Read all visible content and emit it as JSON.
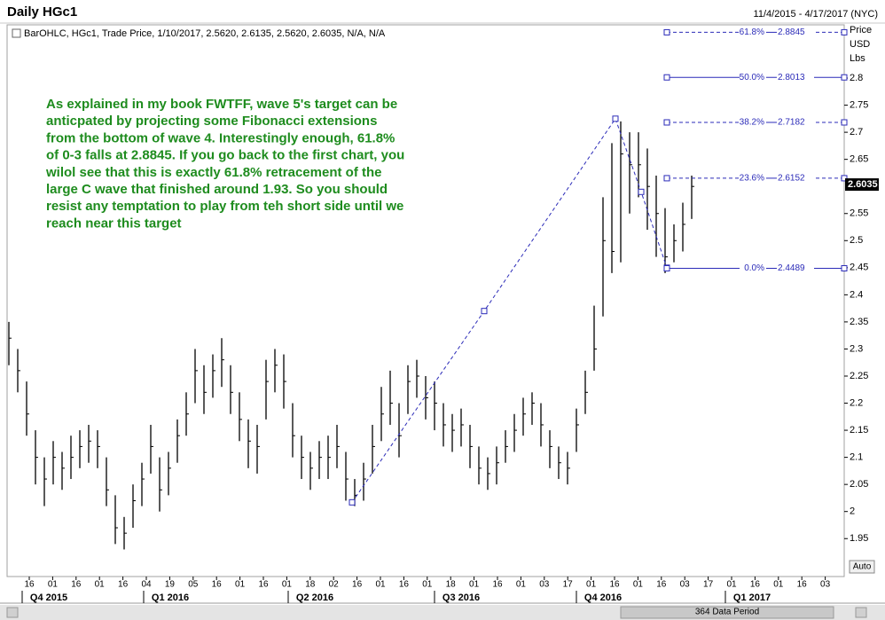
{
  "chart_data": {
    "type": "ohlc",
    "title": "Daily HGc1",
    "date_range": "11/4/2015 - 4/17/2017 (NYC)",
    "legend_text": "BarOHLC, HGc1, Trade Price, 1/10/2017, 2.5620, 2.6135, 2.5620, 2.6035, N/A, N/A",
    "axis_header": [
      "Price",
      "USD",
      "Lbs"
    ],
    "annotation": [
      "As explained in my book FWTFF, wave 5's target can be",
      "anticpated by projecting some Fibonacci extensions",
      "from the bottom of wave 4. Interestingly enough, 61.8%",
      "of 0-3 falls at 2.8845. If you go back to the first chart, you",
      "wilol see that this is exactly 61.8% retracement of the",
      "large C wave that finished around 1.93. So you should",
      "resist any temptation to play from teh short side until we",
      "reach near this target"
    ],
    "bar_color": "#000000",
    "annotation_color": "#1e8c1e",
    "high": [
      2.35,
      2.3,
      2.24,
      2.15,
      2.1,
      2.13,
      2.11,
      2.14,
      2.15,
      2.16,
      2.15,
      2.1,
      2.03,
      1.99,
      2.05,
      2.09,
      2.16,
      2.1,
      2.11,
      2.17,
      2.22,
      2.3,
      2.27,
      2.29,
      2.32,
      2.27,
      2.22,
      2.17,
      2.16,
      2.28,
      2.3,
      2.29,
      2.2,
      2.14,
      2.11,
      2.13,
      2.14,
      2.16,
      2.11,
      2.06,
      2.09,
      2.16,
      2.23,
      2.26,
      2.2,
      2.27,
      2.28,
      2.25,
      2.24,
      2.2,
      2.18,
      2.19,
      2.16,
      2.12,
      2.1,
      2.12,
      2.15,
      2.18,
      2.21,
      2.22,
      2.2,
      2.15,
      2.12,
      2.11,
      2.19,
      2.26,
      2.38,
      2.58,
      2.68,
      2.72,
      2.7,
      2.7,
      2.67,
      2.62,
      2.56,
      2.53,
      2.57,
      2.62
    ],
    "low": [
      2.27,
      2.22,
      2.14,
      2.05,
      2.01,
      2.05,
      2.04,
      2.06,
      2.08,
      2.09,
      2.08,
      2.01,
      1.94,
      1.93,
      1.97,
      2.01,
      2.07,
      2.0,
      2.03,
      2.09,
      2.14,
      2.2,
      2.18,
      2.21,
      2.23,
      2.18,
      2.13,
      2.08,
      2.07,
      2.17,
      2.22,
      2.19,
      2.1,
      2.06,
      2.04,
      2.06,
      2.06,
      2.08,
      2.02,
      2.01,
      2.02,
      2.07,
      2.13,
      2.16,
      2.1,
      2.18,
      2.21,
      2.17,
      2.15,
      2.12,
      2.11,
      2.12,
      2.08,
      2.05,
      2.04,
      2.05,
      2.09,
      2.11,
      2.14,
      2.16,
      2.12,
      2.08,
      2.06,
      2.05,
      2.11,
      2.18,
      2.26,
      2.36,
      2.44,
      2.46,
      2.55,
      2.58,
      2.52,
      2.47,
      2.44,
      2.46,
      2.48,
      2.54
    ],
    "close": [
      2.32,
      2.26,
      2.18,
      2.1,
      2.06,
      2.1,
      2.08,
      2.1,
      2.12,
      2.13,
      2.12,
      2.04,
      1.97,
      1.96,
      2.02,
      2.06,
      2.12,
      2.04,
      2.08,
      2.14,
      2.18,
      2.26,
      2.22,
      2.26,
      2.28,
      2.22,
      2.17,
      2.13,
      2.12,
      2.24,
      2.27,
      2.24,
      2.14,
      2.1,
      2.08,
      2.1,
      2.1,
      2.12,
      2.06,
      2.03,
      2.06,
      2.12,
      2.18,
      2.2,
      2.14,
      2.24,
      2.25,
      2.21,
      2.2,
      2.16,
      2.15,
      2.16,
      2.12,
      2.08,
      2.07,
      2.09,
      2.12,
      2.15,
      2.18,
      2.2,
      2.16,
      2.12,
      2.09,
      2.08,
      2.16,
      2.22,
      2.3,
      2.5,
      2.48,
      2.66,
      2.64,
      2.64,
      2.6,
      2.55,
      2.47,
      2.5,
      2.53,
      2.6
    ],
    "wave_points": [
      {
        "x": 38.7,
        "y": 2.017
      },
      {
        "x": 53.6,
        "y": 2.37
      },
      {
        "x": 68.4,
        "y": 2.725
      },
      {
        "x": 71.3,
        "y": 2.59
      },
      {
        "x": 74.2,
        "y": 2.45
      }
    ],
    "wave_color": "#2b2bb8",
    "fib_levels": [
      {
        "pct": "61.8%",
        "value": 2.8845,
        "dashed": true
      },
      {
        "pct": "50.0%",
        "value": 2.8013,
        "dashed": false
      },
      {
        "pct": "38.2%",
        "value": 2.7182,
        "dashed": true
      },
      {
        "pct": "23.6%",
        "value": 2.6152,
        "dashed": true
      },
      {
        "pct": "0.0%",
        "value": 2.4489,
        "dashed": false
      }
    ],
    "last_price": 2.6035,
    "ylim": [
      1.88,
      2.895
    ],
    "yticks": [
      1.95,
      2,
      2.05,
      2.1,
      2.15,
      2.2,
      2.25,
      2.3,
      2.35,
      2.4,
      2.45,
      2.5,
      2.55,
      2.65,
      2.7,
      2.75,
      2.8
    ],
    "x_labels": [
      "16",
      "01",
      "16",
      "01",
      "16",
      "04",
      "19",
      "05",
      "16",
      "01",
      "16",
      "01",
      "18",
      "02",
      "16",
      "01",
      "16",
      "01",
      "18",
      "01",
      "16",
      "01",
      "03",
      "17",
      "01",
      "16",
      "01",
      "16",
      "03",
      "17",
      "01",
      "16",
      "01",
      "16",
      "03"
    ],
    "periods": [
      "Q4 2015",
      "Q1 2016",
      "Q2 2016",
      "Q3 2016",
      "Q4 2016",
      "Q1 2017"
    ],
    "data_period": "364 Data Period",
    "scale_button": "Auto"
  }
}
